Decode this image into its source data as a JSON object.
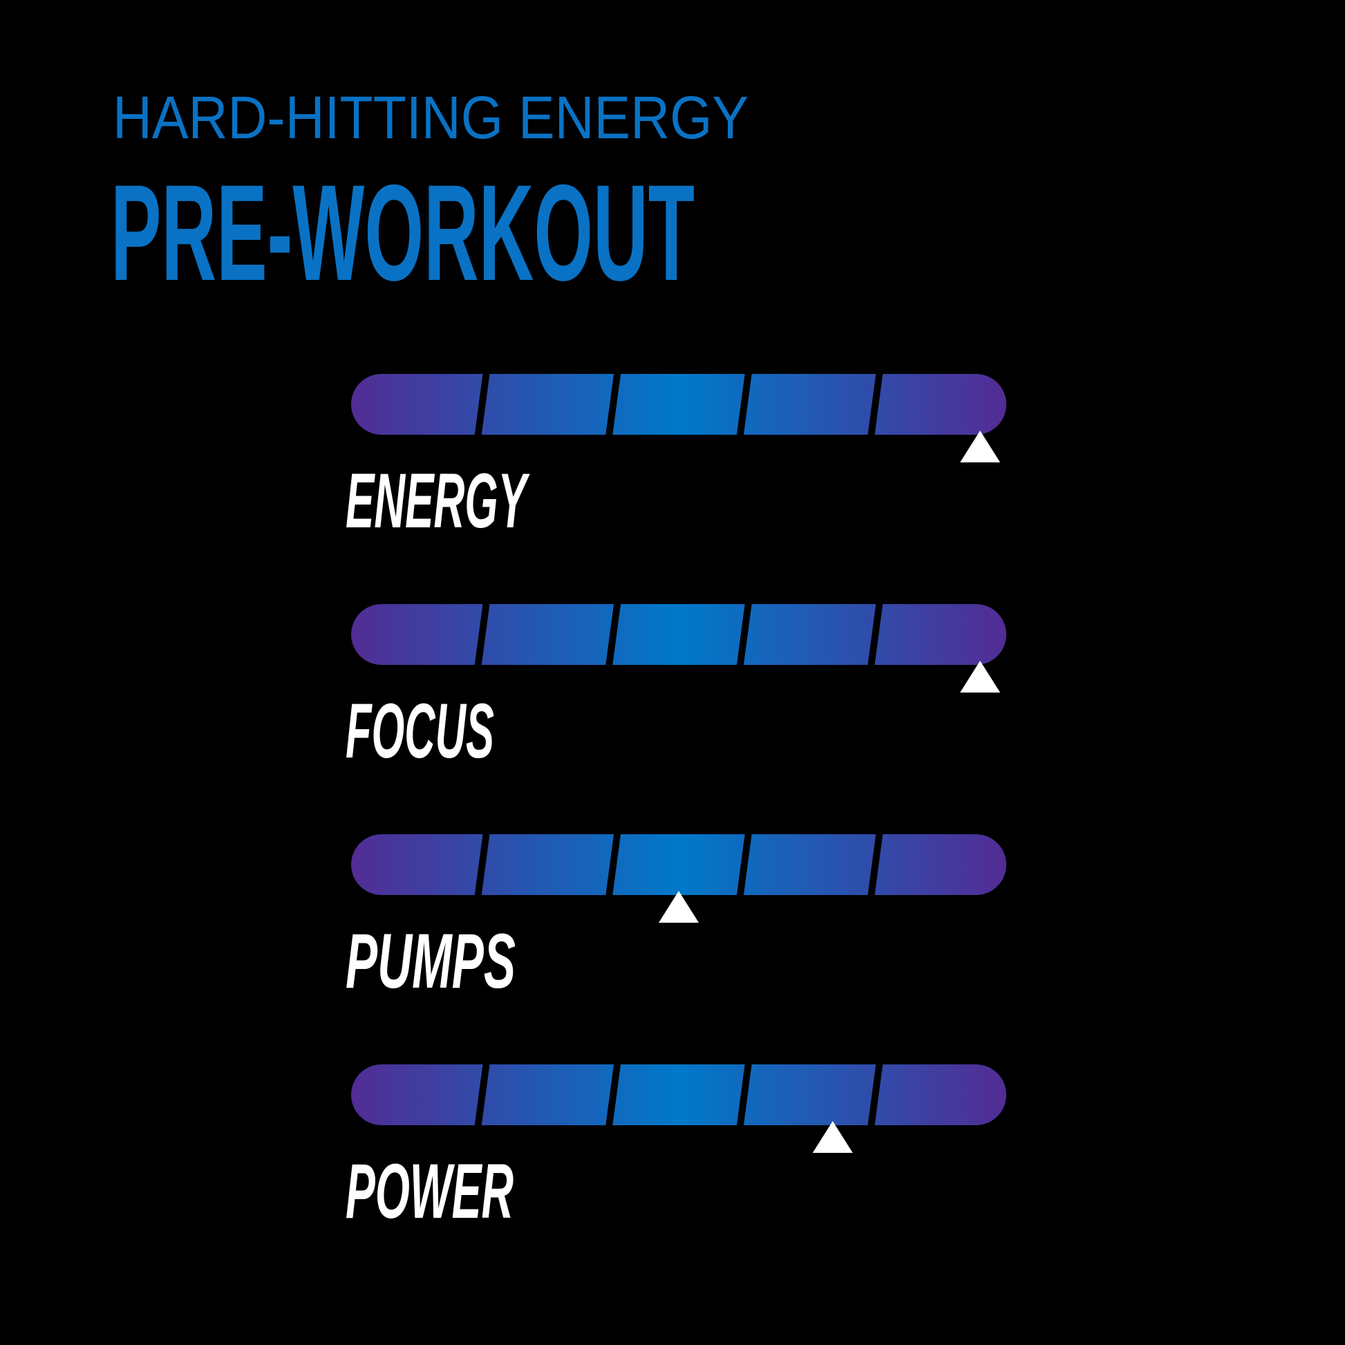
{
  "header": {
    "subtitle": "HARD-HITTING ENERGY",
    "title": "PRE-WORKOUT"
  },
  "colors": {
    "background": "#000000",
    "heading": "#0a72c4",
    "bar_end": "#522c94",
    "bar_center": "#0079c9",
    "marker": "#ffffff",
    "label": "#ffffff"
  },
  "scale": {
    "segments": 5,
    "min": 0,
    "max": 1
  },
  "meters": [
    {
      "label": "ENERGY",
      "level": 0.96
    },
    {
      "label": "FOCUS",
      "level": 0.96
    },
    {
      "label": "PUMPS",
      "level": 0.5
    },
    {
      "label": "POWER",
      "level": 0.735
    }
  ]
}
